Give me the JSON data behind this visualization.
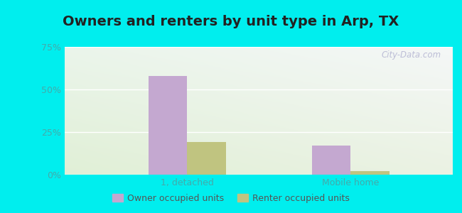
{
  "title": "Owners and renters by unit type in Arp, TX",
  "categories": [
    "1, detached",
    "Mobile home"
  ],
  "owner_values": [
    58,
    17
  ],
  "renter_values": [
    19,
    2
  ],
  "owner_color": "#c4a8d0",
  "renter_color": "#c0c480",
  "ylim": [
    0,
    75
  ],
  "yticks": [
    0,
    25,
    50,
    75
  ],
  "yticklabels": [
    "0%",
    "25%",
    "50%",
    "75%"
  ],
  "outer_background": "#00eeee",
  "title_fontsize": 14,
  "legend_labels": [
    "Owner occupied units",
    "Renter occupied units"
  ],
  "watermark": "City-Data.com",
  "bar_width": 0.38,
  "group_positions": [
    1.0,
    2.6
  ]
}
